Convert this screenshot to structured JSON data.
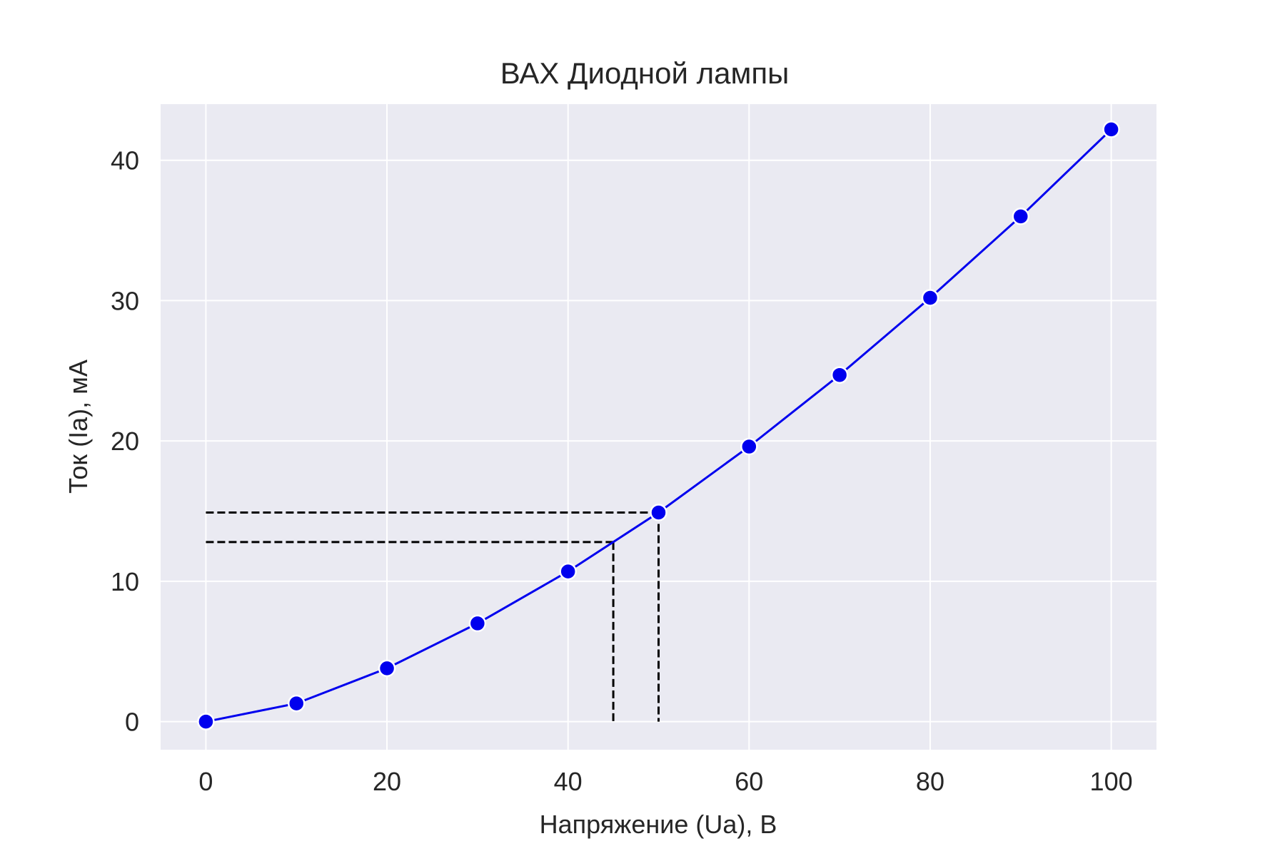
{
  "chart_data": {
    "type": "line",
    "title": "ВАХ Диодной лампы",
    "xlabel": "Напряжение (Ua), В",
    "ylabel": "Ток (Ia), мА",
    "x": [
      0,
      10,
      20,
      30,
      40,
      50,
      60,
      70,
      80,
      90,
      100
    ],
    "series": [
      {
        "values": [
          0,
          1.3,
          3.8,
          7.0,
          10.7,
          14.9,
          19.6,
          24.7,
          30.2,
          36.0,
          42.2
        ]
      }
    ],
    "xlim": [
      -5,
      105
    ],
    "ylim": [
      -2,
      44
    ],
    "xticks": [
      0,
      20,
      40,
      60,
      80,
      100
    ],
    "yticks": [
      0,
      10,
      20,
      30,
      40
    ],
    "grid": true,
    "reference_lines": [
      {
        "x": 45,
        "y": 12.8
      },
      {
        "x": 50,
        "y": 14.9
      }
    ],
    "colors": {
      "line": "#0000ee",
      "marker": "#0000ee",
      "marker_edge": "#ffffff",
      "plot_background": "#eaeaf2",
      "grid": "#ffffff",
      "reference_line": "#000000"
    }
  }
}
